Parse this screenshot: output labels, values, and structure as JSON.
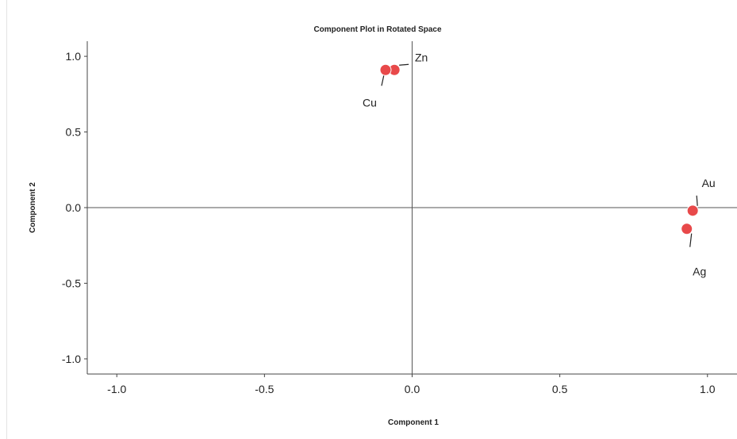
{
  "chart_data": {
    "type": "scatter",
    "title": "Component Plot in Rotated Space",
    "xlabel": "Component 1",
    "ylabel": "Component 2",
    "xlim": [
      -1.1,
      1.1
    ],
    "ylim": [
      -1.1,
      1.1
    ],
    "xticks": [
      "-1.0",
      "-0.5",
      "0.0",
      "0.5",
      "1.0"
    ],
    "yticks": [
      "1.0",
      "0.5",
      "0.0",
      "-0.5",
      "-1.0"
    ],
    "grid": false,
    "point_color": "#e8494a",
    "points": [
      {
        "label": "Zn",
        "x": -0.06,
        "y": 0.91
      },
      {
        "label": "Cu",
        "x": -0.09,
        "y": 0.91
      },
      {
        "label": "Au",
        "x": 0.95,
        "y": -0.02
      },
      {
        "label": "Ag",
        "x": 0.93,
        "y": -0.14
      }
    ]
  }
}
